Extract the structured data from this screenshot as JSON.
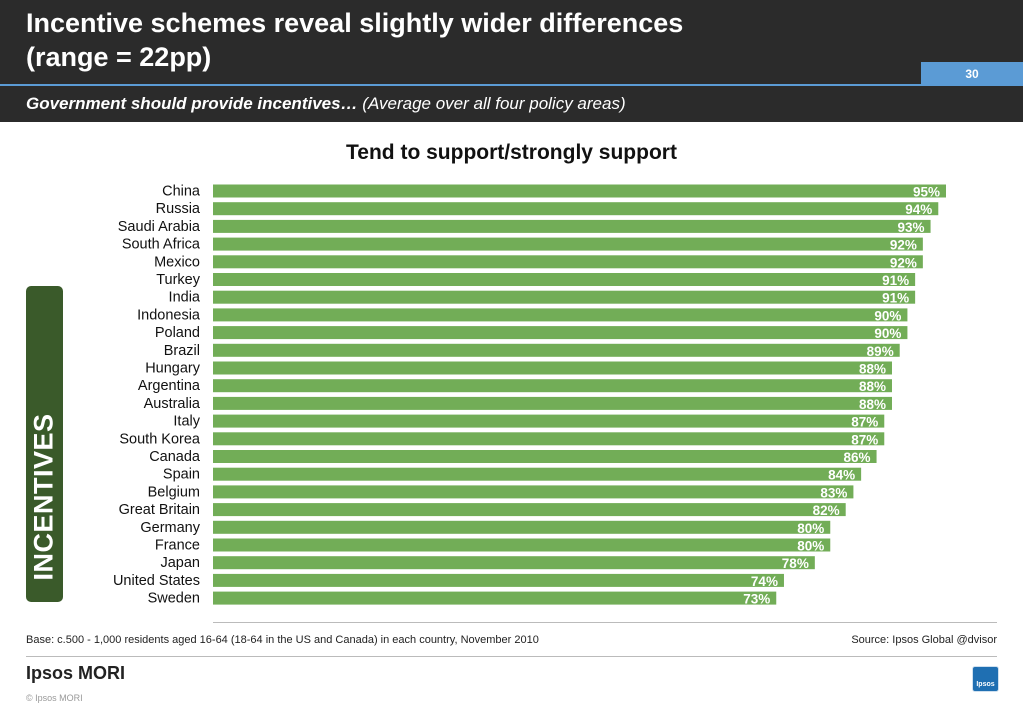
{
  "header": {
    "title_line1": "Incentive schemes reveal slightly wider differences",
    "title_line2": "(range = 22pp)",
    "page_number": "30",
    "subtitle_bold": "Government should provide incentives…",
    "subtitle_rest": " (Average over all four policy areas)",
    "background_color": "#2b2b2b",
    "accent_color": "#5b9bd5"
  },
  "side_tab": {
    "label": "INCENTIVES",
    "color": "#3a5a2a"
  },
  "chart_data": {
    "type": "bar",
    "orientation": "horizontal",
    "title": "Tend to support/strongly support",
    "categories": [
      "China",
      "Russia",
      "Saudi Arabia",
      "South Africa",
      "Mexico",
      "Turkey",
      "India",
      "Indonesia",
      "Poland",
      "Brazil",
      "Hungary",
      "Argentina",
      "Australia",
      "Italy",
      "South Korea",
      "Canada",
      "Spain",
      "Belgium",
      "Great Britain",
      "Germany",
      "France",
      "Japan",
      "United States",
      "Sweden"
    ],
    "values": [
      95,
      94,
      93,
      92,
      92,
      91,
      91,
      90,
      90,
      89,
      88,
      88,
      88,
      87,
      87,
      86,
      84,
      83,
      82,
      80,
      80,
      78,
      74,
      73
    ],
    "value_labels": [
      "95%",
      "94%",
      "93%",
      "92%",
      "92%",
      "91%",
      "91%",
      "90%",
      "90%",
      "89%",
      "88%",
      "88%",
      "88%",
      "87%",
      "87%",
      "86%",
      "84%",
      "83%",
      "82%",
      "80%",
      "80%",
      "78%",
      "74%",
      "73%"
    ],
    "unit": "%",
    "xlim": [
      0,
      100
    ],
    "bar_color": "#72ad57",
    "label_color": "#ffffff",
    "grid": false,
    "legend": false
  },
  "footer": {
    "base_note": "Base: c.500 - 1,000 residents aged 16-64 (18-64 in the US and Canada) in each country, November 2010",
    "source": "Source: Ipsos Global @dvisor",
    "logo_text": "Ipsos MORI",
    "copyright": "© Ipsos MORI",
    "corner_logo_text": "Ipsos"
  }
}
